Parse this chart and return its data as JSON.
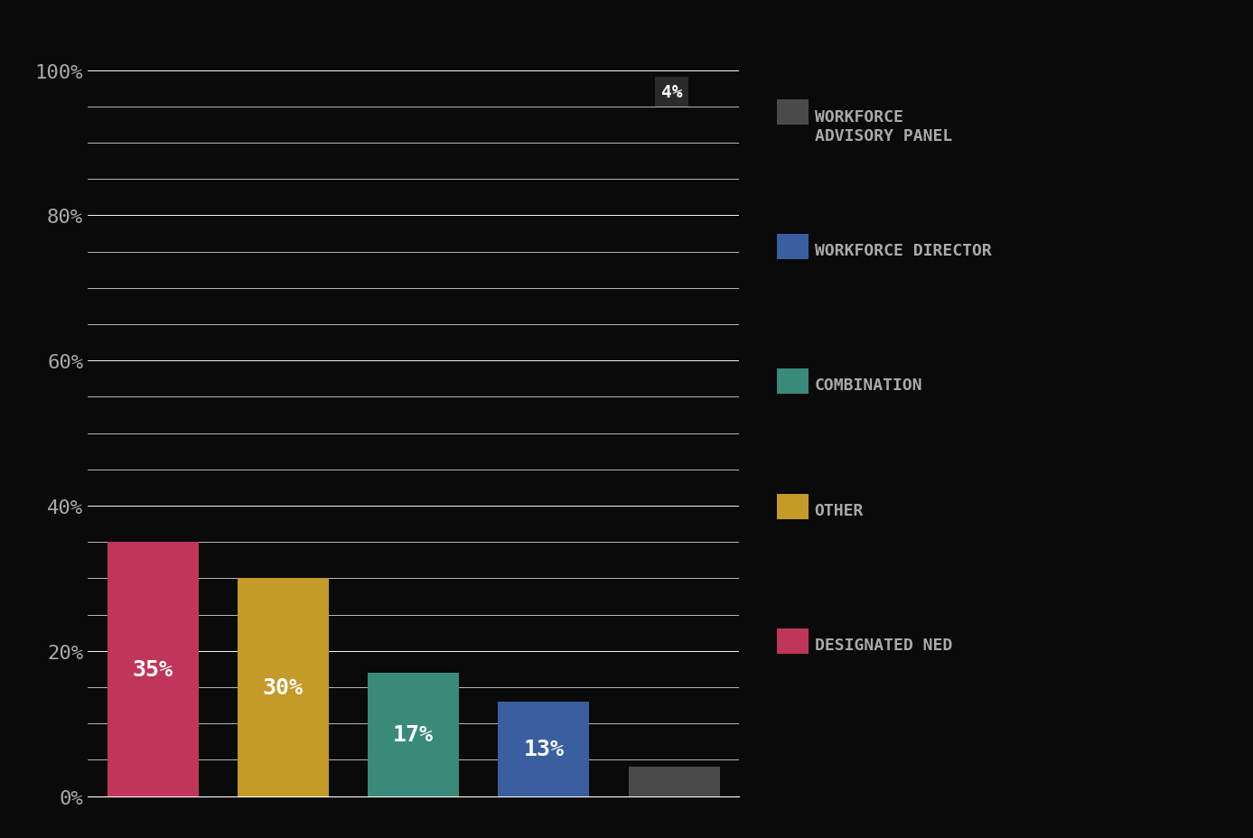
{
  "categories": [
    "DESIGNATED NED",
    "OTHER",
    "COMBINATION",
    "WORKFORCE DIRECTOR",
    "WORKFORCE ADVISORY PANEL"
  ],
  "values": [
    35,
    30,
    17,
    13,
    4
  ],
  "colors": [
    "#c0365a",
    "#c49a28",
    "#3a8a7a",
    "#3a5fa0",
    "#4a4a4a"
  ],
  "bar_width": 0.7,
  "background_color": "#0a0a0a",
  "text_color": "#aaaaaa",
  "grid_color": "#ffffff",
  "ylabel_ticks": [
    "0%",
    "20%",
    "40%",
    "60%",
    "80%",
    "100%"
  ],
  "ytick_vals": [
    0,
    20,
    40,
    60,
    80,
    100
  ],
  "ylim": [
    0,
    104
  ],
  "legend_labels": [
    "WORKFORCE\nADVISORY PANEL",
    "WORKFORCE DIRECTOR",
    "COMBINATION",
    "OTHER",
    "DESIGNATED NED"
  ],
  "legend_colors": [
    "#4a4a4a",
    "#3a5fa0",
    "#3a8a7a",
    "#c49a28",
    "#c0365a"
  ],
  "value_labels": [
    "35%",
    "30%",
    "17%",
    "13%",
    "4%"
  ],
  "label_fontsize": 18,
  "legend_fontsize": 13,
  "ytick_fontsize": 16
}
